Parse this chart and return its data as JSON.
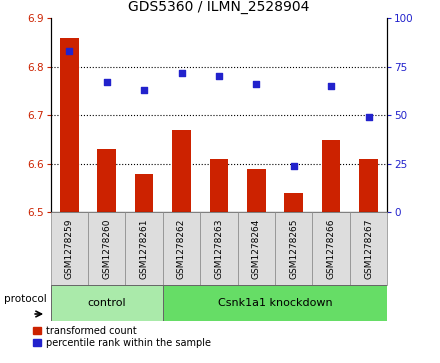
{
  "title": "GDS5360 / ILMN_2528904",
  "samples": [
    "GSM1278259",
    "GSM1278260",
    "GSM1278261",
    "GSM1278262",
    "GSM1278263",
    "GSM1278264",
    "GSM1278265",
    "GSM1278266",
    "GSM1278267"
  ],
  "bar_values": [
    6.86,
    6.63,
    6.58,
    6.67,
    6.61,
    6.59,
    6.54,
    6.65,
    6.61
  ],
  "percentile_values": [
    83,
    67,
    63,
    72,
    70,
    66,
    24,
    65,
    49
  ],
  "ylim_left": [
    6.5,
    6.9
  ],
  "ylim_right": [
    0,
    100
  ],
  "yticks_left": [
    6.5,
    6.6,
    6.7,
    6.8,
    6.9
  ],
  "yticks_right": [
    0,
    25,
    50,
    75,
    100
  ],
  "bar_color": "#cc2200",
  "dot_color": "#2222cc",
  "control_samples": 3,
  "control_label": "control",
  "knockdown_label": "Csnk1a1 knockdown",
  "protocol_label": "protocol",
  "legend_bar_label": "transformed count",
  "legend_dot_label": "percentile rank within the sample",
  "control_bg": "#aaeaaa",
  "knockdown_bg": "#66dd66",
  "sample_bg": "#dddddd",
  "baseline": 6.5,
  "bar_width": 0.5,
  "dot_size": 22
}
